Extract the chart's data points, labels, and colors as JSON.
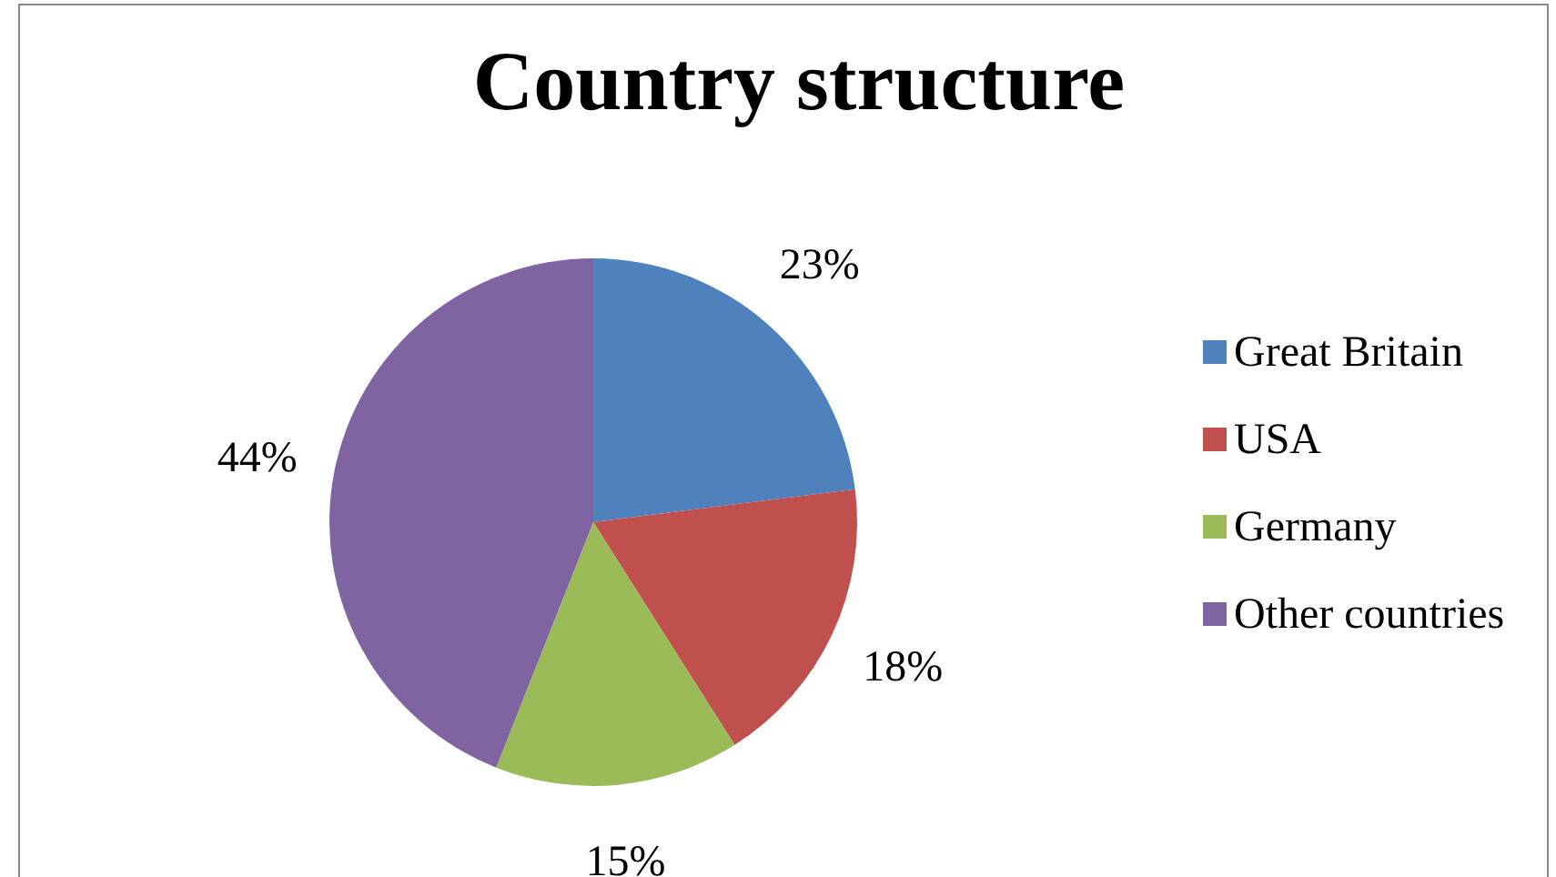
{
  "chart_data": {
    "type": "pie",
    "title": "Country structure",
    "categories": [
      "Great Britain",
      "USA",
      "Germany",
      "Other countries"
    ],
    "values": [
      23,
      18,
      15,
      44
    ],
    "value_labels": [
      "23%",
      "18%",
      "15%",
      "44%"
    ],
    "colors": [
      "#4f81bd",
      "#c0504d",
      "#9bbb59",
      "#8064a2"
    ],
    "legend": "right"
  }
}
